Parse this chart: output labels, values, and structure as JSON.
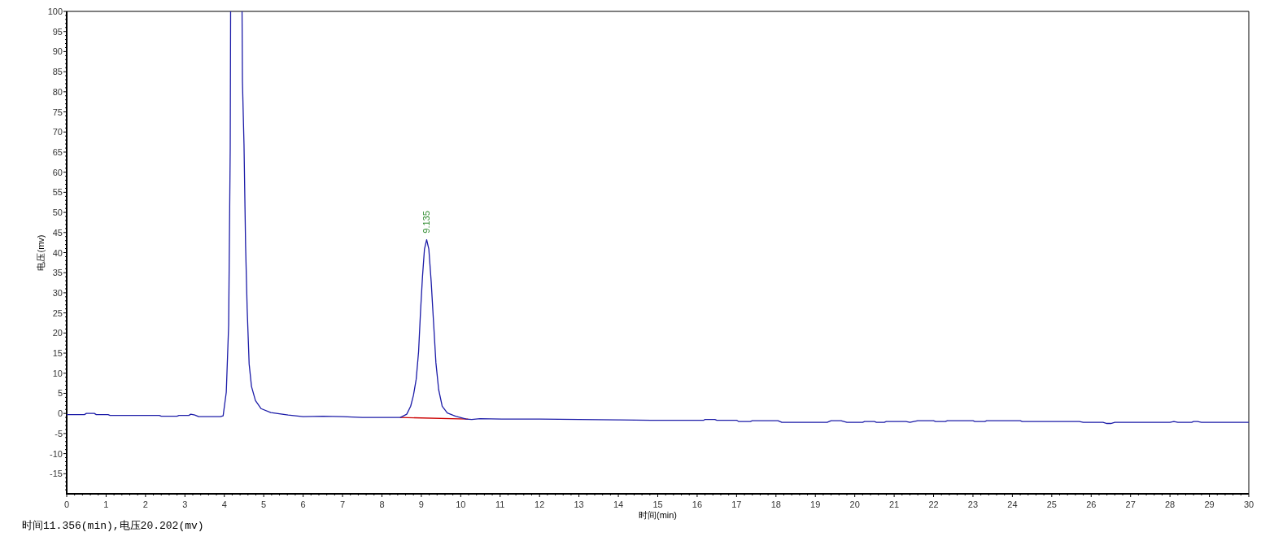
{
  "chart_data": {
    "type": "line",
    "xlabel": "时间(min)",
    "ylabel": "电压(mv)",
    "xlim": [
      0,
      30
    ],
    "xticks": [
      0,
      1,
      2,
      3,
      4,
      5,
      6,
      7,
      8,
      9,
      10,
      11,
      12,
      13,
      14,
      15,
      16,
      17,
      18,
      19,
      20,
      21,
      22,
      23,
      24,
      25,
      26,
      27,
      28,
      29,
      30
    ],
    "ylim": [
      -20,
      100
    ],
    "yticks": [
      -15,
      -10,
      -5,
      0,
      5,
      10,
      15,
      20,
      25,
      30,
      35,
      40,
      45,
      50,
      55,
      60,
      65,
      70,
      75,
      80,
      85,
      90,
      95,
      100
    ],
    "grid": false,
    "marker": "none",
    "line_style": "solid",
    "annotations": [
      "时间11.356(min),电压20.202(mv)",
      {
        "text": "9.135",
        "x": 9.135,
        "y": 44
      }
    ],
    "series": [
      {
        "color": "#1c1ca8",
        "x": [
          0,
          0.45,
          0.5,
          0.7,
          0.75,
          1.05,
          1.1,
          2.35,
          2.4,
          2.8,
          2.85,
          3.1,
          3.15,
          3.25,
          3.35,
          3.9,
          3.97,
          4.05,
          4.11,
          4.15,
          4.16
        ],
        "values": [
          -0.3,
          -0.3,
          0,
          0,
          -0.3,
          -0.3,
          -0.5,
          -0.5,
          -0.7,
          -0.7,
          -0.5,
          -0.5,
          -0.2,
          -0.4,
          -0.8,
          -0.8,
          -0.6,
          5.3,
          22,
          66,
          100
        ]
      },
      {
        "color": "#1c1ca8",
        "x": [
          4.45,
          4.46,
          4.5,
          4.54,
          4.58,
          4.63,
          4.69,
          4.79,
          4.93,
          5.18,
          5.62,
          6.0,
          6.5,
          7.0,
          7.5,
          8.0,
          8.47,
          8.63,
          8.73,
          8.8,
          8.87,
          8.93,
          8.98,
          9.03,
          9.08,
          9.135,
          9.19,
          9.25,
          9.31,
          9.37,
          9.44,
          9.53,
          9.66,
          9.87,
          10.14,
          10.28,
          10.49,
          11.04,
          12,
          13,
          14,
          14.83,
          16.17,
          16.2,
          16.45,
          16.5,
          17.0,
          17.05,
          17.35,
          17.4,
          18.05,
          18.15,
          19.3,
          19.4,
          19.65,
          19.8,
          20.2,
          20.25,
          20.5,
          20.55,
          20.75,
          20.8,
          21.3,
          21.4,
          21.6,
          22.0,
          22.05,
          22.3,
          22.35,
          23.0,
          23.05,
          23.3,
          23.35,
          24.2,
          24.25,
          25.7,
          25.8,
          26.3,
          26.4,
          26.5,
          26.6,
          28.0,
          28.1,
          28.2,
          28.55,
          28.6,
          28.7,
          28.8,
          30
        ],
        "values": [
          100,
          82.6,
          66.7,
          41.6,
          26,
          12.3,
          6.7,
          3.2,
          1.2,
          0.2,
          -0.4,
          -0.8,
          -0.7,
          -0.8,
          -1.0,
          -1.0,
          -1.0,
          -0.2,
          1.8,
          4.5,
          8.5,
          15.3,
          25.4,
          34.1,
          40.9,
          43.2,
          40.9,
          32.8,
          22.7,
          12.6,
          5.9,
          1.8,
          0.1,
          -0.7,
          -1.4,
          -1.5,
          -1.3,
          -1.4,
          -1.4,
          -1.5,
          -1.6,
          -1.7,
          -1.7,
          -1.5,
          -1.5,
          -1.7,
          -1.7,
          -2.0,
          -2.0,
          -1.8,
          -1.8,
          -2.2,
          -2.2,
          -1.8,
          -1.8,
          -2.2,
          -2.2,
          -2.0,
          -2.0,
          -2.2,
          -2.2,
          -2.0,
          -2.0,
          -2.2,
          -1.8,
          -1.8,
          -2.0,
          -2.0,
          -1.8,
          -1.8,
          -2.0,
          -2.0,
          -1.8,
          -1.8,
          -2.0,
          -2.0,
          -2.2,
          -2.2,
          -2.5,
          -2.5,
          -2.2,
          -2.2,
          -2.0,
          -2.2,
          -2.2,
          -2.0,
          -2.0,
          -2.2,
          -2.2
        ]
      },
      {
        "color": "#cc0000",
        "x": [
          8.47,
          10.18
        ],
        "values": [
          -1.0,
          -1.4
        ]
      }
    ]
  }
}
